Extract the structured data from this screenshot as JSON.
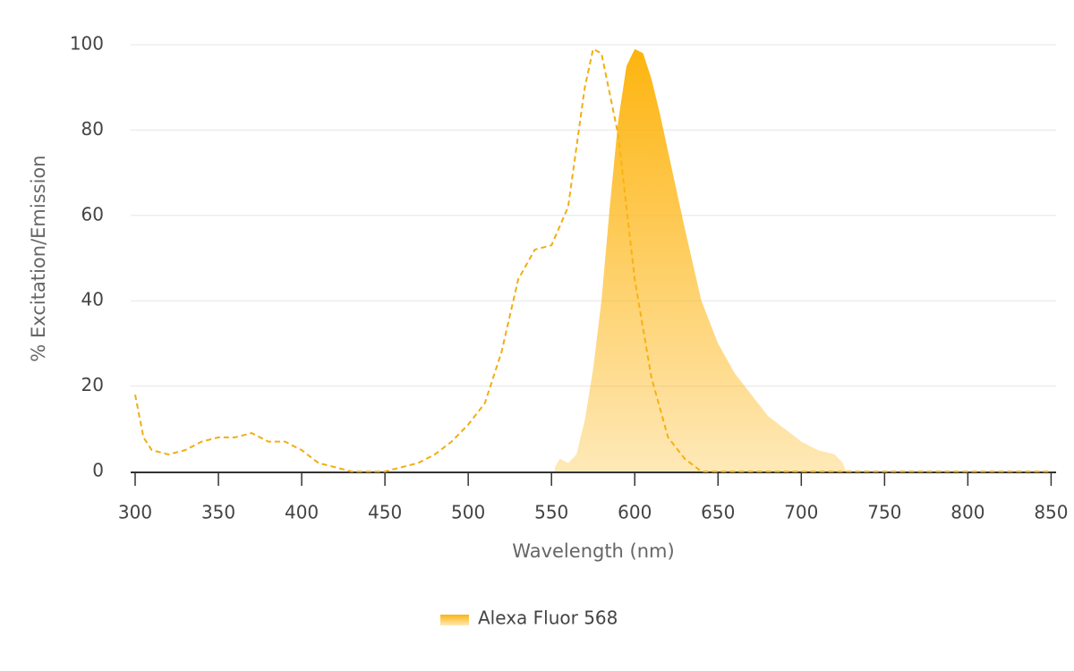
{
  "chart_data": {
    "type": "spectrum",
    "x_label": "Wavelength (nm)",
    "y_label": "% Excitation/Emission",
    "xlim": [
      300,
      853
    ],
    "ylim": [
      0,
      100
    ],
    "xticks": [
      300,
      350,
      400,
      450,
      500,
      550,
      600,
      650,
      700,
      750,
      800,
      850
    ],
    "yticks": [
      0,
      20,
      40,
      60,
      80,
      100
    ],
    "grid": true,
    "legend": "bottom",
    "series": [
      {
        "kind": "line",
        "dashed": true,
        "color": "#f0ae12",
        "x": [
          300,
          305,
          310,
          320,
          330,
          340,
          350,
          360,
          370,
          380,
          390,
          400,
          410,
          420,
          430,
          440,
          450,
          460,
          470,
          480,
          490,
          500,
          510,
          520,
          530,
          540,
          550,
          560,
          570,
          575,
          580,
          590,
          600,
          610,
          620,
          630,
          640,
          650,
          700,
          750,
          800,
          850
        ],
        "values": [
          18,
          8,
          5,
          4,
          5,
          7,
          8,
          8,
          9,
          7,
          7,
          5,
          2,
          1,
          0,
          0,
          0,
          1,
          2,
          4,
          7,
          11,
          16,
          28,
          45,
          52,
          53,
          62,
          90,
          99,
          98,
          79,
          45,
          22,
          8,
          3,
          0,
          0,
          0,
          0,
          0,
          0
        ]
      },
      {
        "kind": "area",
        "name": "Alexa Fluor 568",
        "color": "#fdb40f",
        "x": [
          552,
          555,
          560,
          565,
          570,
          575,
          580,
          585,
          590,
          595,
          600,
          605,
          610,
          615,
          620,
          630,
          640,
          650,
          660,
          670,
          680,
          690,
          700,
          710,
          720,
          725,
          727
        ],
        "values": [
          1,
          3,
          2,
          4,
          12,
          24,
          40,
          62,
          82,
          95,
          99,
          98,
          92,
          84,
          75,
          57,
          40,
          30,
          23,
          18,
          13,
          10,
          7,
          5,
          4,
          2,
          0
        ]
      }
    ]
  }
}
